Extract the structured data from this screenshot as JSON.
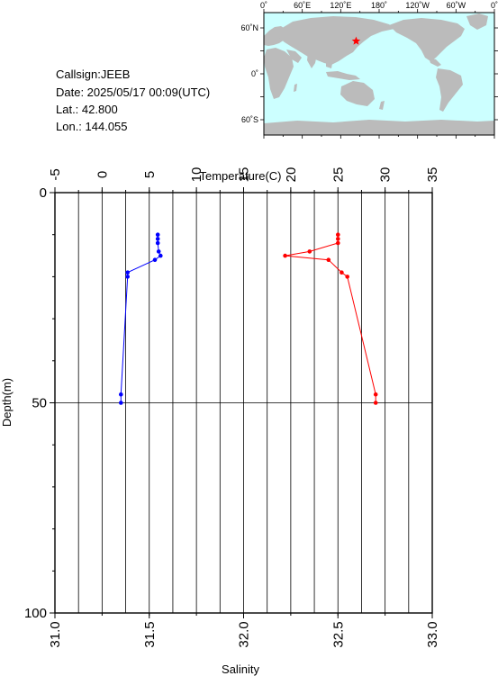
{
  "info": {
    "callsign": "Callsign:JEEB",
    "date": "Date:  2025/05/17 00:09(UTC)",
    "lat": "Lat.:   42.800",
    "lon": "Lon.:  144.055"
  },
  "map": {
    "top_ticks": [
      "0˚",
      "60˚E",
      "120˚E",
      "180˚",
      "120˚W",
      "60˚W",
      "0˚"
    ],
    "left_ticks": [
      "60˚N",
      "0˚",
      "60˚S"
    ],
    "ocean_color": "#ccffff",
    "land_color": "#bbbbbb",
    "marker_color": "#ff0000",
    "station_lon": 144.055,
    "station_lat": 42.8
  },
  "chart_data": {
    "type": "line",
    "x_top_label": "Temperature(C)",
    "x_bottom_label": "Salinity",
    "y_label": "Depth(m)",
    "temperature_ticks": [
      "-5",
      "0",
      "5",
      "10",
      "15",
      "20",
      "25",
      "30",
      "35"
    ],
    "salinity_ticks": [
      "31.0",
      "31.5",
      "32.0",
      "32.5",
      "33.0"
    ],
    "depth_ticks": [
      "0",
      "50",
      "100"
    ],
    "temperature_range": [
      -5,
      35
    ],
    "salinity_range": [
      31.0,
      33.0
    ],
    "depth_range": [
      0,
      100
    ],
    "series": [
      {
        "color": "#0000ff",
        "values": [
          {
            "t": 5.9,
            "depth": 10
          },
          {
            "t": 5.9,
            "depth": 11
          },
          {
            "t": 5.9,
            "depth": 12
          },
          {
            "t": 6.0,
            "depth": 14
          },
          {
            "t": 6.2,
            "depth": 15
          },
          {
            "t": 5.6,
            "depth": 16
          },
          {
            "t": 2.7,
            "depth": 19
          },
          {
            "t": 2.7,
            "depth": 20
          },
          {
            "t": 2.0,
            "depth": 48
          },
          {
            "t": 2.0,
            "depth": 50
          }
        ]
      },
      {
        "color": "#ff0000",
        "values": [
          {
            "s": 32.5,
            "depth": 10
          },
          {
            "s": 32.5,
            "depth": 11
          },
          {
            "s": 32.5,
            "depth": 12
          },
          {
            "s": 32.35,
            "depth": 14
          },
          {
            "s": 32.22,
            "depth": 15
          },
          {
            "s": 32.45,
            "depth": 16
          },
          {
            "s": 32.52,
            "depth": 19
          },
          {
            "s": 32.55,
            "depth": 20
          },
          {
            "s": 32.7,
            "depth": 48
          },
          {
            "s": 32.7,
            "depth": 50
          }
        ]
      }
    ]
  }
}
